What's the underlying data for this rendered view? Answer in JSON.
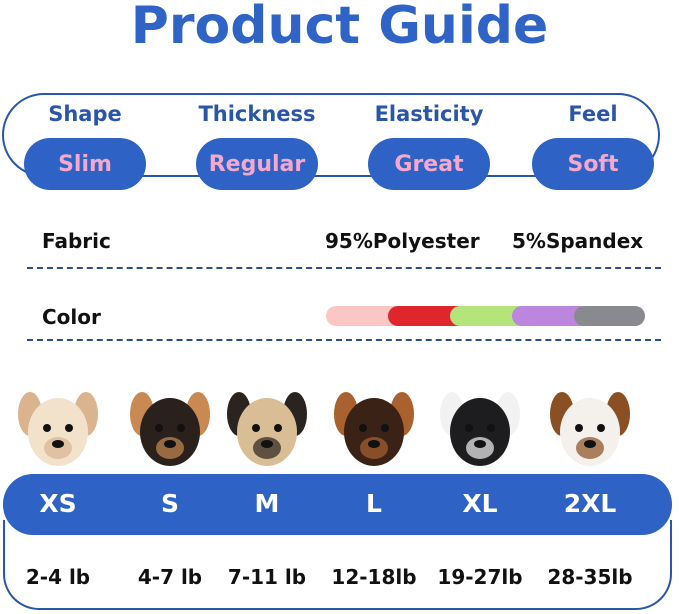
{
  "title": "Product Guide",
  "features": [
    {
      "label": "Shape",
      "value": "Slim"
    },
    {
      "label": "Thickness",
      "value": "Regular"
    },
    {
      "label": "Elasticity",
      "value": "Great"
    },
    {
      "label": "Feel",
      "value": "Soft"
    }
  ],
  "fabric": {
    "label": "Fabric",
    "composition": [
      "95%Polyester",
      "5%Spandex"
    ]
  },
  "color": {
    "label": "Color",
    "swatches": [
      "#fbc7c4",
      "#e0262d",
      "#b3e57a",
      "#bc86de",
      "#898a8f"
    ]
  },
  "sizes": [
    {
      "size": "XS",
      "weight": "2-4 lb",
      "dog": "white-maltipoo-dog"
    },
    {
      "size": "S",
      "weight": "4-7 lb",
      "dog": "chihuahua-dog"
    },
    {
      "size": "M",
      "weight": "7-11 lb",
      "dog": "pug-dog"
    },
    {
      "size": "L",
      "weight": "12-18lb",
      "dog": "dachshund-dog"
    },
    {
      "size": "XL",
      "weight": "19-27lb",
      "dog": "boston-terrier-dog"
    },
    {
      "size": "2XL",
      "weight": "28-35lb",
      "dog": "beagle-dog"
    }
  ],
  "colors": {
    "accent": "#2e62c4",
    "pill_text": "#f6a8cc",
    "outline": "#2a56a8"
  }
}
